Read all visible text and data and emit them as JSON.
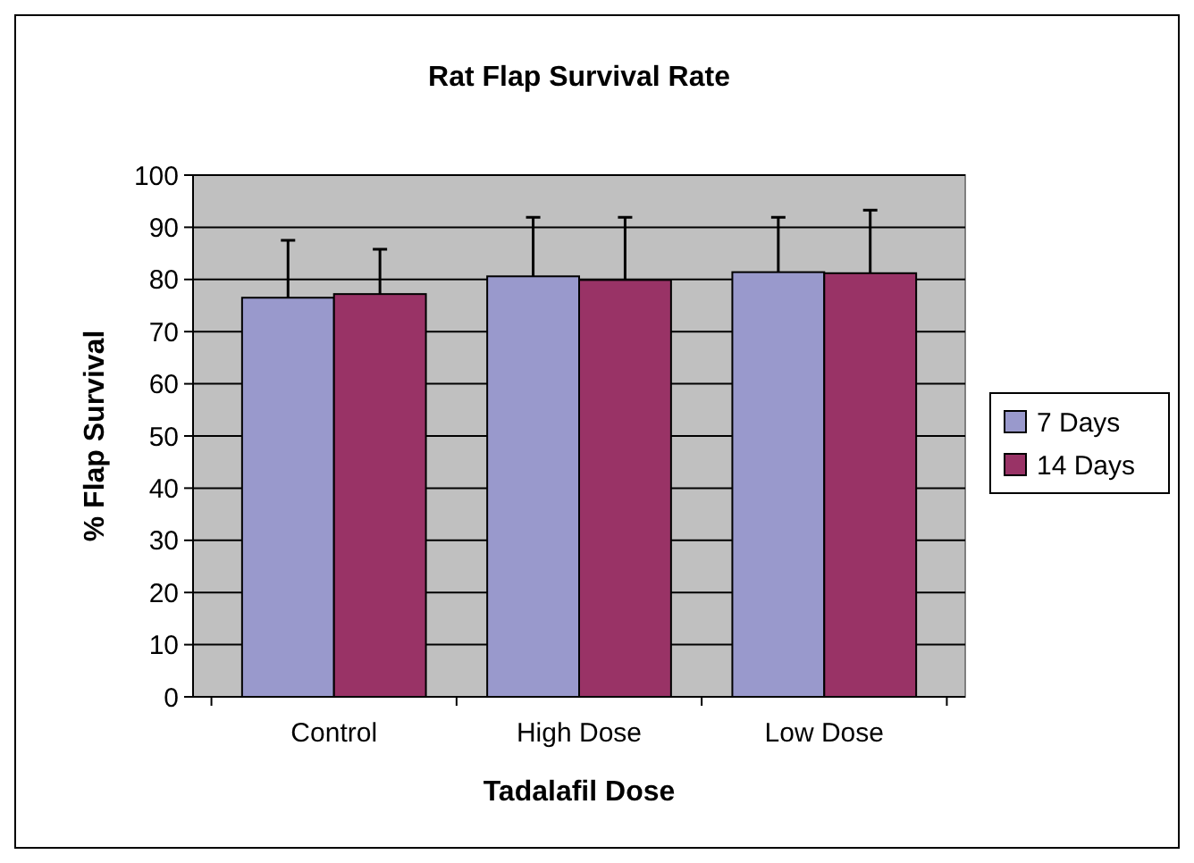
{
  "chart_data": {
    "type": "bar",
    "title": "Rat Flap Survival Rate",
    "xlabel": "Tadalafil Dose",
    "ylabel": "% Flap Survival",
    "categories": [
      "Control",
      "High Dose",
      "Low Dose"
    ],
    "series": [
      {
        "name": "7 Days",
        "color": "#9999cc",
        "values": [
          76.5,
          80.6,
          81.4
        ],
        "errors": [
          [
            76.5,
            87.5
          ],
          [
            80.6,
            91.9
          ],
          [
            81.4,
            91.9
          ]
        ]
      },
      {
        "name": "14 Days",
        "color": "#993366",
        "values": [
          77.2,
          79.9,
          81.2
        ],
        "errors": [
          [
            77.2,
            85.8
          ],
          [
            79.9,
            91.9
          ],
          [
            81.2,
            93.3
          ]
        ]
      }
    ],
    "ylim": [
      0,
      100
    ],
    "yticks": [
      0,
      10,
      20,
      30,
      40,
      50,
      60,
      70,
      80,
      90,
      100
    ],
    "grid": "y",
    "legend": "right"
  }
}
